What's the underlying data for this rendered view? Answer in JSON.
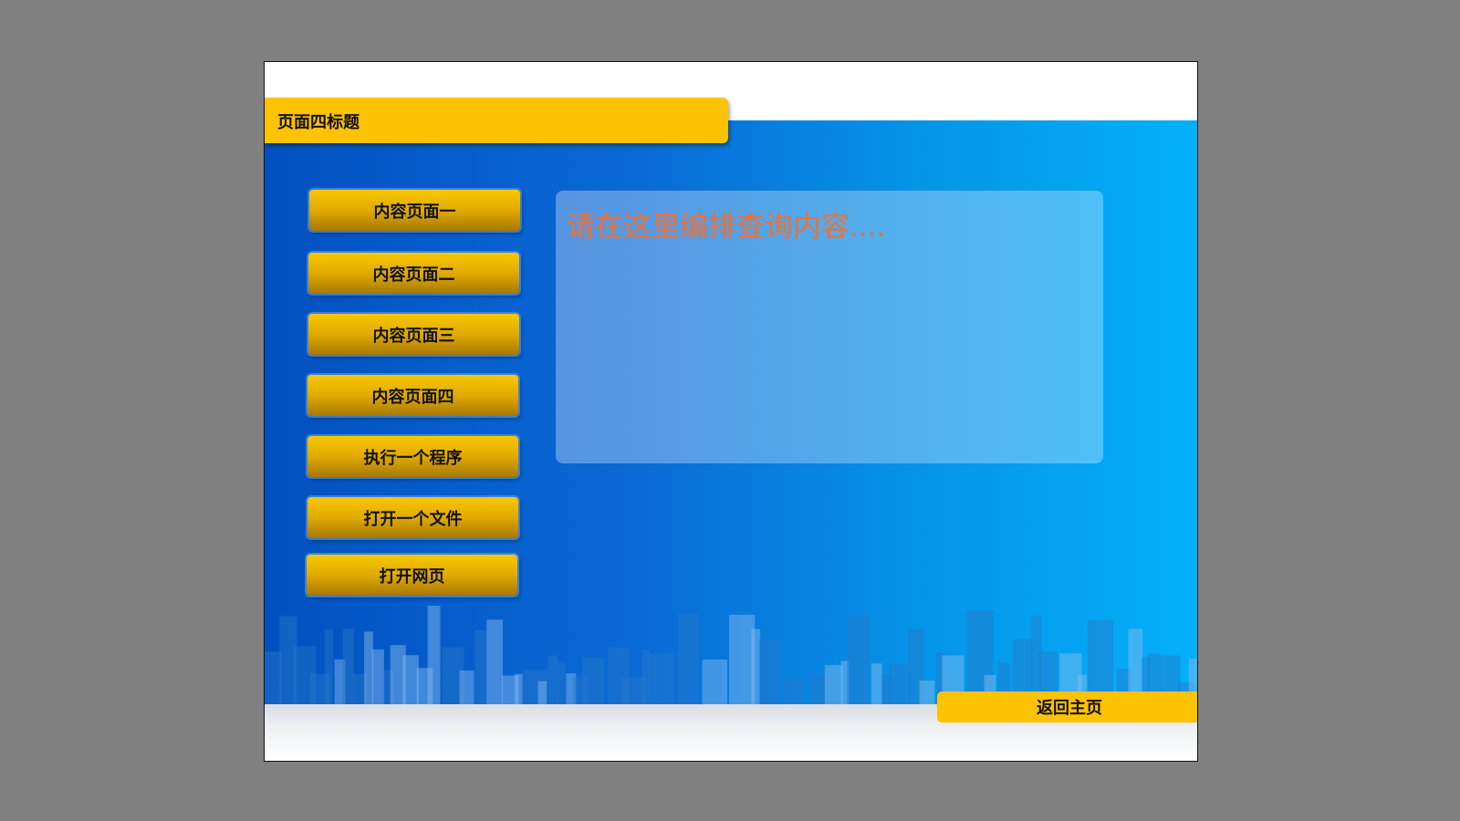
{
  "page": {
    "title": "页面四标题"
  },
  "nav": {
    "items": [
      {
        "label": "内容页面一"
      },
      {
        "label": "内容页面二"
      },
      {
        "label": "内容页面三"
      },
      {
        "label": "内容页面四"
      },
      {
        "label": "执行一个程序"
      },
      {
        "label": "打开一个文件"
      },
      {
        "label": "打开网页"
      }
    ]
  },
  "content": {
    "placeholder_text": "请在这里编排查询内容...."
  },
  "footer": {
    "home_label": "返回主页"
  },
  "colors": {
    "accent": "#fdc200",
    "content_text": "#f36f2e",
    "bg_left": "#0250c0",
    "bg_right": "#04b0fa"
  }
}
